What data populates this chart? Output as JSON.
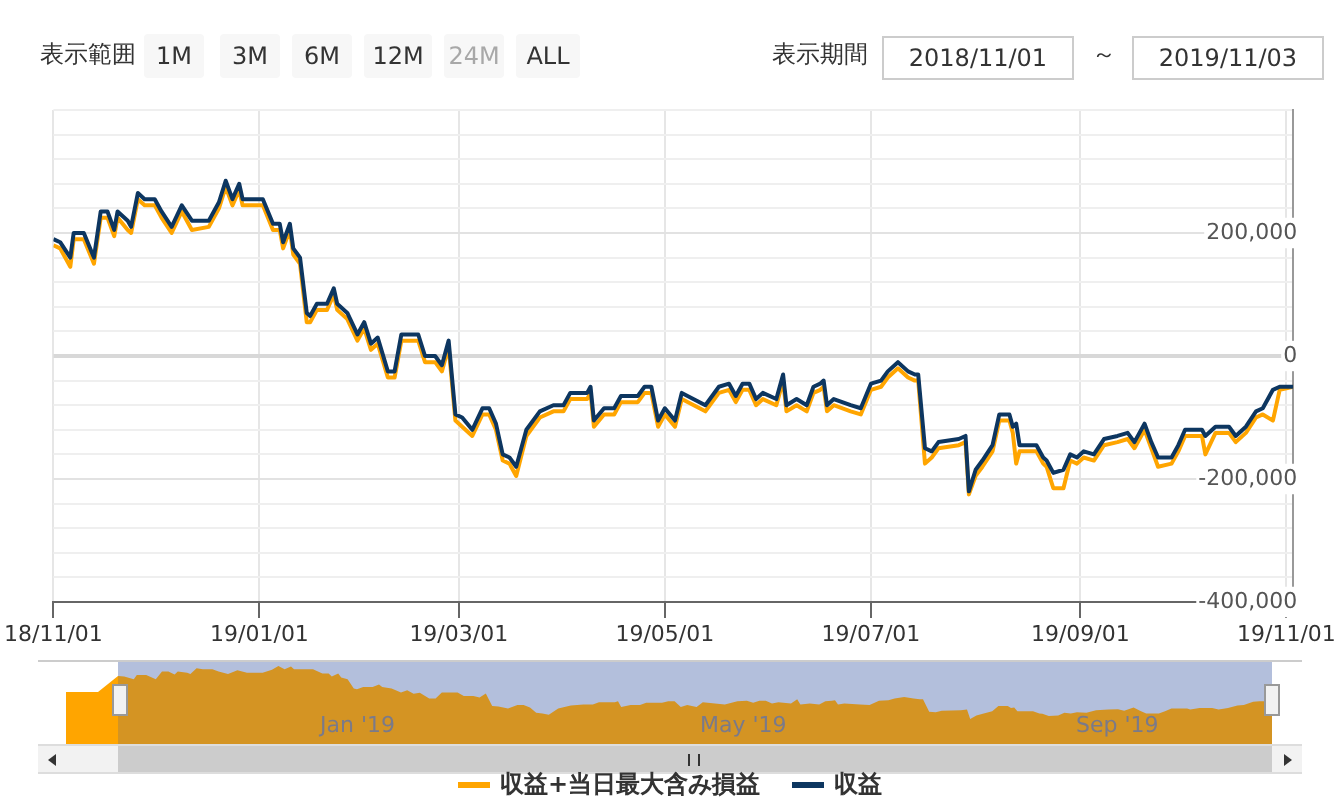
{
  "chart_data": {
    "type": "line",
    "x": [
      "2018-11-01",
      "2018-11-03",
      "2018-11-06",
      "2018-11-07",
      "2018-11-10",
      "2018-11-13",
      "2018-11-15",
      "2018-11-17",
      "2018-11-19",
      "2018-11-20",
      "2018-11-23",
      "2018-11-24",
      "2018-11-26",
      "2018-11-28",
      "2018-12-01",
      "2018-12-03",
      "2018-12-06",
      "2018-12-09",
      "2018-12-12",
      "2018-12-17",
      "2018-12-20",
      "2018-12-22",
      "2018-12-24",
      "2018-12-26",
      "2018-12-27",
      "2019-01-02",
      "2019-01-05",
      "2019-01-07",
      "2019-01-08",
      "2019-01-10",
      "2019-01-11",
      "2019-01-13",
      "2019-01-15",
      "2019-01-16",
      "2019-01-18",
      "2019-01-21",
      "2019-01-23",
      "2019-01-24",
      "2019-01-27",
      "2019-01-30",
      "2019-02-01",
      "2019-02-03",
      "2019-02-05",
      "2019-02-08",
      "2019-02-10",
      "2019-02-12",
      "2019-02-17",
      "2019-02-19",
      "2019-02-22",
      "2019-02-24",
      "2019-02-26",
      "2019-02-28",
      "2019-03-02",
      "2019-03-05",
      "2019-03-08",
      "2019-03-10",
      "2019-03-12",
      "2019-03-14",
      "2019-03-16",
      "2019-03-18",
      "2019-03-21",
      "2019-03-25",
      "2019-03-29",
      "2019-04-01",
      "2019-04-03",
      "2019-04-08",
      "2019-04-09",
      "2019-04-10",
      "2019-04-13",
      "2019-04-16",
      "2019-04-18",
      "2019-04-23",
      "2019-04-25",
      "2019-04-27",
      "2019-04-29",
      "2019-05-01",
      "2019-05-04",
      "2019-05-06",
      "2019-05-13",
      "2019-05-17",
      "2019-05-20",
      "2019-05-22",
      "2019-05-24",
      "2019-05-26",
      "2019-05-28",
      "2019-05-30",
      "2019-06-03",
      "2019-06-05",
      "2019-06-06",
      "2019-06-09",
      "2019-06-12",
      "2019-06-14",
      "2019-06-16",
      "2019-06-17",
      "2019-06-18",
      "2019-06-20",
      "2019-06-25",
      "2019-06-28",
      "2019-07-01",
      "2019-07-04",
      "2019-07-06",
      "2019-07-09",
      "2019-07-12",
      "2019-07-14",
      "2019-07-15",
      "2019-07-17",
      "2019-07-19",
      "2019-07-21",
      "2019-07-27",
      "2019-07-29",
      "2019-07-30",
      "2019-08-01",
      "2019-08-03",
      "2019-08-06",
      "2019-08-08",
      "2019-08-11",
      "2019-08-12",
      "2019-08-13",
      "2019-08-14",
      "2019-08-19",
      "2019-08-21",
      "2019-08-22",
      "2019-08-24",
      "2019-08-27",
      "2019-08-29",
      "2019-08-31",
      "2019-09-02",
      "2019-09-05",
      "2019-09-08",
      "2019-09-12",
      "2019-09-15",
      "2019-09-17",
      "2019-09-20",
      "2019-09-22",
      "2019-09-24",
      "2019-09-28",
      "2019-09-30",
      "2019-10-02",
      "2019-10-07",
      "2019-10-08",
      "2019-10-11",
      "2019-10-15",
      "2019-10-17",
      "2019-10-20",
      "2019-10-23",
      "2019-10-25",
      "2019-10-28",
      "2019-10-30",
      "2019-11-03"
    ],
    "series": [
      {
        "name": "収益+当日最大含み損益",
        "color": "#ffa500",
        "values": [
          180000,
          175000,
          145000,
          190000,
          190000,
          150000,
          225000,
          225000,
          195000,
          225000,
          205000,
          200000,
          255000,
          245000,
          245000,
          225000,
          200000,
          235000,
          205000,
          210000,
          240000,
          275000,
          245000,
          270000,
          245000,
          245000,
          205000,
          205000,
          175000,
          205000,
          165000,
          150000,
          55000,
          55000,
          75000,
          75000,
          100000,
          75000,
          60000,
          25000,
          45000,
          10000,
          20000,
          -35000,
          -35000,
          25000,
          25000,
          -10000,
          -10000,
          -25000,
          15000,
          -105000,
          -115000,
          -130000,
          -95000,
          -95000,
          -120000,
          -170000,
          -175000,
          -195000,
          -130000,
          -100000,
          -90000,
          -90000,
          -70000,
          -70000,
          -60000,
          -115000,
          -95000,
          -95000,
          -75000,
          -75000,
          -60000,
          -60000,
          -115000,
          -95000,
          -115000,
          -70000,
          -90000,
          -60000,
          -55000,
          -75000,
          -55000,
          -55000,
          -80000,
          -70000,
          -80000,
          -40000,
          -90000,
          -80000,
          -90000,
          -60000,
          -55000,
          -50000,
          -90000,
          -80000,
          -90000,
          -95000,
          -55000,
          -50000,
          -35000,
          -20000,
          -35000,
          -40000,
          -40000,
          -175000,
          -165000,
          -150000,
          -145000,
          -140000,
          -225000,
          -195000,
          -180000,
          -155000,
          -105000,
          -105000,
          -125000,
          -175000,
          -155000,
          -155000,
          -175000,
          -180000,
          -215000,
          -215000,
          -170000,
          -175000,
          -165000,
          -170000,
          -145000,
          -140000,
          -135000,
          -150000,
          -120000,
          -150000,
          -180000,
          -175000,
          -155000,
          -130000,
          -130000,
          -160000,
          -125000,
          -125000,
          -140000,
          -125000,
          -100000,
          -95000,
          -105000,
          -55000,
          -50000
        ]
      },
      {
        "name": "収益",
        "color": "#0d3660",
        "values": [
          190000,
          185000,
          160000,
          200000,
          200000,
          160000,
          235000,
          235000,
          205000,
          235000,
          220000,
          210000,
          265000,
          255000,
          255000,
          235000,
          210000,
          245000,
          220000,
          220000,
          250000,
          285000,
          255000,
          280000,
          255000,
          255000,
          215000,
          215000,
          185000,
          215000,
          175000,
          160000,
          70000,
          65000,
          85000,
          85000,
          110000,
          85000,
          70000,
          35000,
          55000,
          20000,
          30000,
          -25000,
          -25000,
          35000,
          35000,
          0,
          0,
          -15000,
          25000,
          -95000,
          -100000,
          -120000,
          -85000,
          -85000,
          -110000,
          -160000,
          -165000,
          -180000,
          -120000,
          -90000,
          -80000,
          -80000,
          -60000,
          -60000,
          -50000,
          -105000,
          -85000,
          -85000,
          -65000,
          -65000,
          -50000,
          -50000,
          -105000,
          -85000,
          -105000,
          -60000,
          -80000,
          -50000,
          -45000,
          -65000,
          -45000,
          -45000,
          -70000,
          -60000,
          -70000,
          -30000,
          -80000,
          -70000,
          -80000,
          -50000,
          -45000,
          -40000,
          -80000,
          -70000,
          -80000,
          -85000,
          -45000,
          -40000,
          -25000,
          -10000,
          -25000,
          -30000,
          -30000,
          -150000,
          -155000,
          -140000,
          -135000,
          -130000,
          -220000,
          -185000,
          -170000,
          -145000,
          -95000,
          -95000,
          -115000,
          -110000,
          -145000,
          -145000,
          -165000,
          -170000,
          -190000,
          -185000,
          -160000,
          -165000,
          -155000,
          -160000,
          -135000,
          -130000,
          -125000,
          -140000,
          -110000,
          -140000,
          -165000,
          -165000,
          -145000,
          -120000,
          -120000,
          -130000,
          -115000,
          -115000,
          -130000,
          -115000,
          -90000,
          -85000,
          -55000,
          -50000,
          -50000
        ]
      }
    ],
    "xlim": [
      "2018-11-01",
      "2019-11-03"
    ],
    "xticks": [
      {
        "value": "2018-11-01",
        "label": "18/11/01"
      },
      {
        "value": "2019-01-01",
        "label": "19/01/01"
      },
      {
        "value": "2019-03-01",
        "label": "19/03/01"
      },
      {
        "value": "2019-05-01",
        "label": "19/05/01"
      },
      {
        "value": "2019-07-01",
        "label": "19/07/01"
      },
      {
        "value": "2019-09-01",
        "label": "19/09/01"
      },
      {
        "value": "2019-11-01",
        "label": "19/11/01"
      }
    ],
    "ylim": [
      -400000,
      400000
    ],
    "yticks": [
      {
        "value": -400000,
        "label": "-400,000"
      },
      {
        "value": -360000,
        "label": null
      },
      {
        "value": -320000,
        "label": null
      },
      {
        "value": -280000,
        "label": null
      },
      {
        "value": -240000,
        "label": null
      },
      {
        "value": -200000,
        "label": "-200,000"
      },
      {
        "value": -160000,
        "label": null
      },
      {
        "value": -120000,
        "label": null
      },
      {
        "value": -80000,
        "label": null
      },
      {
        "value": -40000,
        "label": null
      },
      0,
      {
        "value": 40000,
        "label": null
      },
      {
        "value": 80000,
        "label": null
      },
      {
        "value": 120000,
        "label": null
      },
      {
        "value": 160000,
        "label": null
      },
      {
        "value": 200000,
        "label": "200,000"
      },
      {
        "value": 240000,
        "label": null
      },
      {
        "value": 280000,
        "label": null
      },
      {
        "value": 320000,
        "label": null
      },
      {
        "value": 360000,
        "label": null
      },
      {
        "value": 400000,
        "label": null
      }
    ],
    "grid": true,
    "legend": "bottom",
    "marker": "none",
    "line_style": "solid",
    "annotations": [
      "表示範囲",
      "1M",
      "3M",
      "6M",
      "12M",
      "24M",
      "ALL",
      "表示期間",
      "2018/11/01",
      "～",
      "2019/11/03",
      "Jan '19",
      "May '19",
      "Sep '19"
    ]
  }
}
